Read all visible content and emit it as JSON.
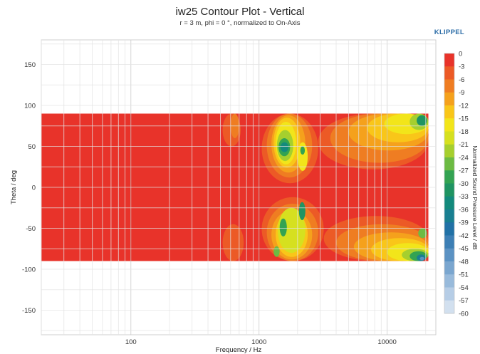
{
  "chart_data": {
    "type": "heatmap",
    "title": "iw25 Contour Plot - Vertical",
    "subtitle": "r = 3 m, phi = 0 °, normalized to On-Axis",
    "brand": "KLIPPEL",
    "xlabel": "Frequency / Hz",
    "ylabel": "Theta / deg",
    "colorbar_label": "Normalized Sound Pressure Level / dB",
    "x_scale": "log",
    "xlim": [
      20,
      24000
    ],
    "ylim": [
      -180,
      180
    ],
    "data_ylim": [
      -90,
      90
    ],
    "x_ticks": [
      {
        "value": 100,
        "label": "100"
      },
      {
        "value": 1000,
        "label": "1000"
      },
      {
        "value": 10000,
        "label": "10000"
      }
    ],
    "y_ticks": [
      {
        "value": 150,
        "label": "150"
      },
      {
        "value": 100,
        "label": "100"
      },
      {
        "value": 50,
        "label": "50"
      },
      {
        "value": 0,
        "label": "0"
      },
      {
        "value": -50,
        "label": "-50"
      },
      {
        "value": -100,
        "label": "-100"
      },
      {
        "value": -150,
        "label": "-150"
      }
    ],
    "colorbar": [
      {
        "level": "0",
        "color": "#e8332a"
      },
      {
        "level": "-3",
        "color": "#ec5a26"
      },
      {
        "level": "-6",
        "color": "#ef7d22"
      },
      {
        "level": "-9",
        "color": "#f5a11c"
      },
      {
        "level": "-12",
        "color": "#f9c619"
      },
      {
        "level": "-15",
        "color": "#f2e51a"
      },
      {
        "level": "-18",
        "color": "#d6e01f"
      },
      {
        "level": "-21",
        "color": "#a6cf2e"
      },
      {
        "level": "-24",
        "color": "#6cbb43"
      },
      {
        "level": "-27",
        "color": "#33a352"
      },
      {
        "level": "-30",
        "color": "#1f9462"
      },
      {
        "level": "-33",
        "color": "#138a7c"
      },
      {
        "level": "-36",
        "color": "#197f91"
      },
      {
        "level": "-39",
        "color": "#2171a6"
      },
      {
        "level": "-42",
        "color": "#3d7fb5"
      },
      {
        "level": "-45",
        "color": "#5b92c3"
      },
      {
        "level": "-48",
        "color": "#7aa6cf"
      },
      {
        "level": "-51",
        "color": "#98badb"
      },
      {
        "level": "-54",
        "color": "#b6cde6"
      },
      {
        "level": "-57",
        "color": "#d2e0ef"
      },
      {
        "level": "-60",
        "color": ""
      }
    ],
    "regions": [
      {
        "level": -3,
        "f": [
          520,
          720
        ],
        "theta": [
          50,
          90
        ]
      },
      {
        "level": -3,
        "f": [
          520,
          760
        ],
        "theta": [
          -90,
          -45
        ]
      },
      {
        "level": -6,
        "f": [
          600,
          700
        ],
        "theta": [
          60,
          90
        ]
      },
      {
        "level": -3,
        "f": [
          1050,
          2900
        ],
        "theta": [
          5,
          90
        ]
      },
      {
        "level": -6,
        "f": [
          1150,
          2600
        ],
        "theta": [
          12,
          90
        ]
      },
      {
        "level": -9,
        "f": [
          1250,
          2300
        ],
        "theta": [
          18,
          88
        ]
      },
      {
        "level": -12,
        "f": [
          1300,
          2100
        ],
        "theta": [
          24,
          85
        ]
      },
      {
        "level": -15,
        "f": [
          1350,
          1950
        ],
        "theta": [
          28,
          80
        ]
      },
      {
        "level": -21,
        "f": [
          1380,
          1850
        ],
        "theta": [
          32,
          70
        ]
      },
      {
        "level": -27,
        "f": [
          1420,
          1750
        ],
        "theta": [
          38,
          60
        ]
      },
      {
        "level": -33,
        "f": [
          1470,
          1700
        ],
        "theta": [
          43,
          55
        ]
      },
      {
        "level": -15,
        "f": [
          2000,
          2400
        ],
        "theta": [
          20,
          55
        ]
      },
      {
        "level": -27,
        "f": [
          2100,
          2280
        ],
        "theta": [
          40,
          50
        ]
      },
      {
        "level": -3,
        "f": [
          1050,
          3200
        ],
        "theta": [
          -90,
          -12
        ]
      },
      {
        "level": -6,
        "f": [
          1150,
          2900
        ],
        "theta": [
          -90,
          -20
        ]
      },
      {
        "level": -9,
        "f": [
          1250,
          2600
        ],
        "theta": [
          -88,
          -28
        ]
      },
      {
        "level": -12,
        "f": [
          1350,
          2400
        ],
        "theta": [
          -85,
          -30
        ]
      },
      {
        "level": -18,
        "f": [
          1400,
          2300
        ],
        "theta": [
          -80,
          -25
        ]
      },
      {
        "level": -27,
        "f": [
          1450,
          1650
        ],
        "theta": [
          -60,
          -38
        ]
      },
      {
        "level": -30,
        "f": [
          2050,
          2300
        ],
        "theta": [
          -40,
          -18
        ]
      },
      {
        "level": -24,
        "f": [
          1300,
          1450
        ],
        "theta": [
          -85,
          -72
        ]
      },
      {
        "level": -3,
        "f": [
          2900,
          21000
        ],
        "theta": [
          22,
          90
        ]
      },
      {
        "level": -6,
        "f": [
          3600,
          21000
        ],
        "theta": [
          30,
          90
        ]
      },
      {
        "level": -9,
        "f": [
          5000,
          21000
        ],
        "theta": [
          45,
          90
        ]
      },
      {
        "level": -12,
        "f": [
          7000,
          21000
        ],
        "theta": [
          55,
          90
        ]
      },
      {
        "level": -15,
        "f": [
          9500,
          21000
        ],
        "theta": [
          65,
          90
        ]
      },
      {
        "level": -21,
        "f": [
          15000,
          21000
        ],
        "theta": [
          70,
          90
        ]
      },
      {
        "level": -30,
        "f": [
          17000,
          20500
        ],
        "theta": [
          75,
          88
        ]
      },
      {
        "level": -3,
        "f": [
          3200,
          21000
        ],
        "theta": [
          -90,
          -35
        ]
      },
      {
        "level": -6,
        "f": [
          4000,
          21000
        ],
        "theta": [
          -90,
          -45
        ]
      },
      {
        "level": -9,
        "f": [
          5500,
          21000
        ],
        "theta": [
          -90,
          -55
        ]
      },
      {
        "level": -12,
        "f": [
          7500,
          21000
        ],
        "theta": [
          -90,
          -62
        ]
      },
      {
        "level": -15,
        "f": [
          10000,
          21000
        ],
        "theta": [
          -90,
          -68
        ]
      },
      {
        "level": -21,
        "f": [
          13000,
          21000
        ],
        "theta": [
          -90,
          -75
        ]
      },
      {
        "level": -27,
        "f": [
          15000,
          20500
        ],
        "theta": [
          -90,
          -78
        ]
      },
      {
        "level": -36,
        "f": [
          17000,
          20000
        ],
        "theta": [
          -90,
          -82
        ]
      },
      {
        "level": -45,
        "f": [
          18000,
          19500
        ],
        "theta": [
          -89,
          -85
        ]
      },
      {
        "level": -24,
        "f": [
          17500,
          20500
        ],
        "theta": [
          -62,
          -50
        ]
      }
    ]
  }
}
